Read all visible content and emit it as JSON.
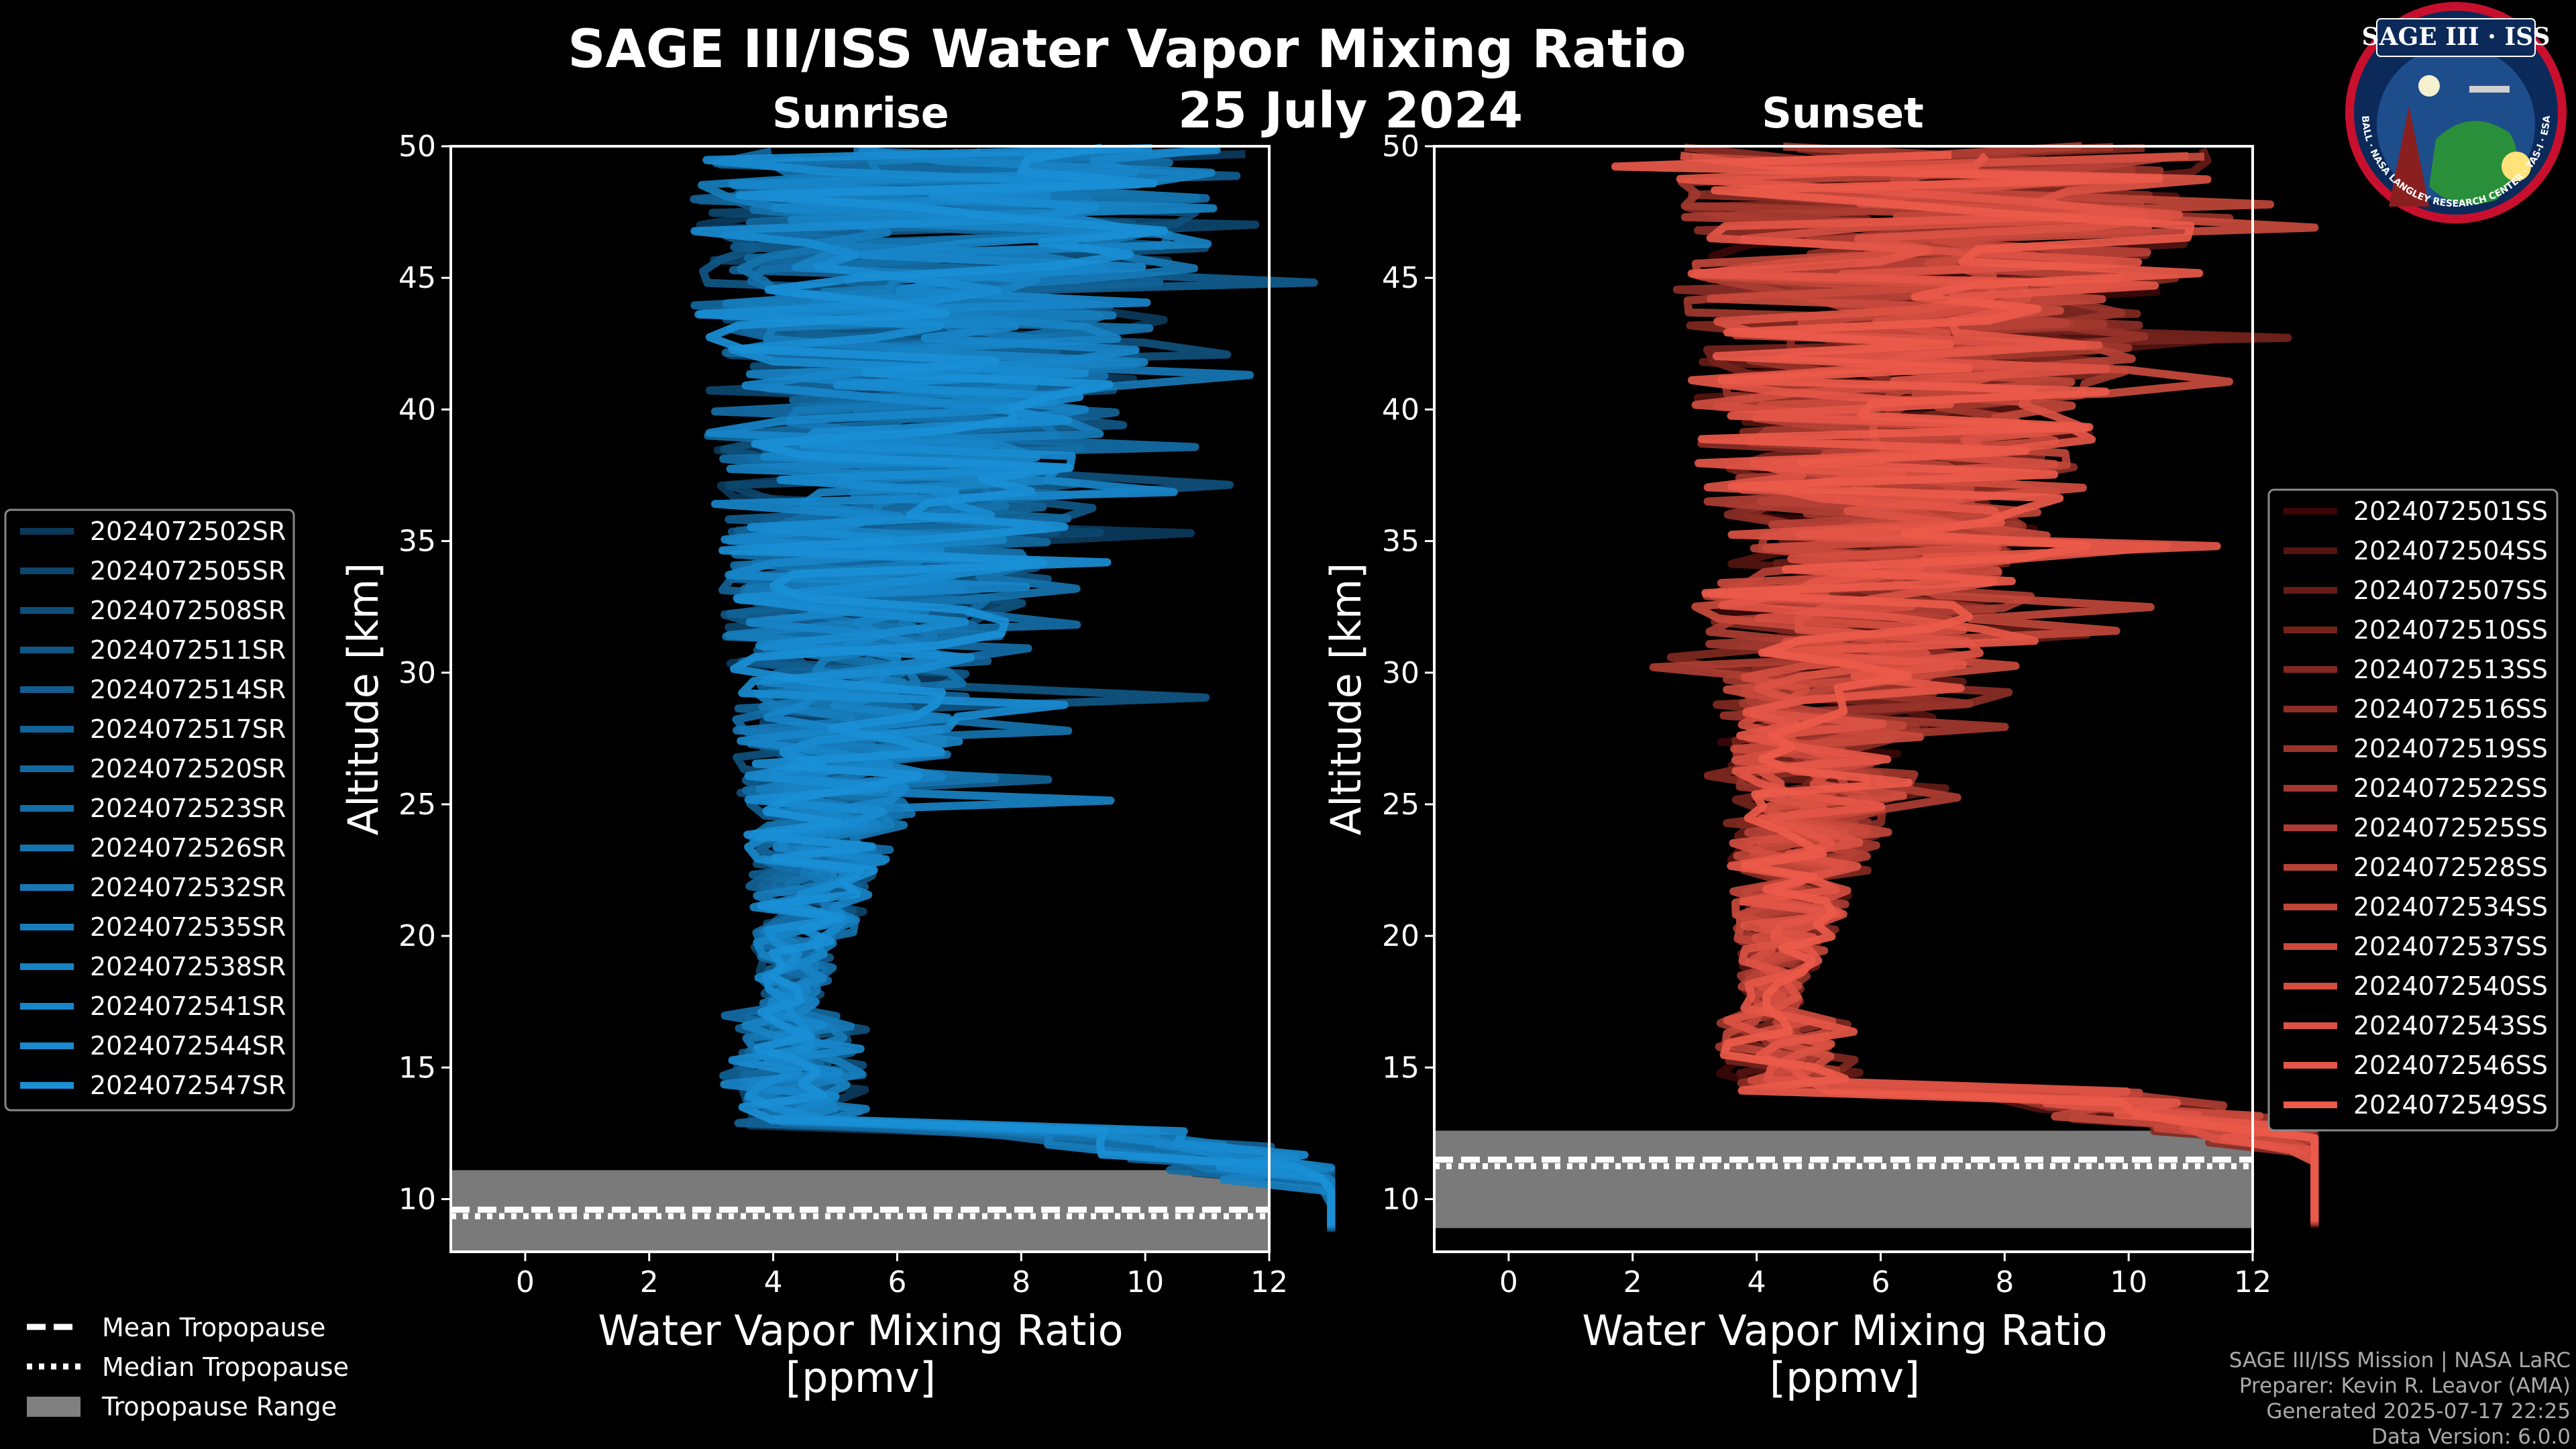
{
  "chart_data": {
    "title": "SAGE III/ISS Water Vapor Mixing Ratio",
    "date": "25 July 2024",
    "type": "line",
    "panels": [
      {
        "name": "sunrise",
        "subtitle": "Sunrise",
        "xlabel": "Water Vapor Mixing Ratio",
        "xunit": "[ppmv]",
        "ylabel": "Altitude [km]",
        "xlim": [
          -1.2,
          12
        ],
        "ylim": [
          8,
          50
        ],
        "xticks": [
          0,
          2,
          4,
          6,
          8,
          10,
          12
        ],
        "yticks": [
          10,
          15,
          20,
          25,
          30,
          35,
          40,
          45,
          50
        ],
        "tropopause": {
          "min": 8,
          "max": 11.1,
          "mean": 9.6,
          "median": 9.35
        },
        "color_dark": "#0b3a5c",
        "color_light": "#1a8fd6",
        "series": [
          "2024072502SR",
          "2024072505SR",
          "2024072508SR",
          "2024072511SR",
          "2024072514SR",
          "2024072517SR",
          "2024072520SR",
          "2024072523SR",
          "2024072526SR",
          "2024072532SR",
          "2024072535SR",
          "2024072538SR",
          "2024072541SR",
          "2024072544SR",
          "2024072547SR"
        ]
      },
      {
        "name": "sunset",
        "subtitle": "Sunset",
        "xlabel": "Water Vapor Mixing Ratio",
        "xunit": "[ppmv]",
        "ylabel": "Altitude [km]",
        "xlim": [
          -1.2,
          12
        ],
        "ylim": [
          8,
          50
        ],
        "xticks": [
          0,
          2,
          4,
          6,
          8,
          10,
          12
        ],
        "yticks": [
          10,
          15,
          20,
          25,
          30,
          35,
          40,
          45,
          50
        ],
        "tropopause": {
          "min": 8.9,
          "max": 12.6,
          "mean": 11.5,
          "median": 11.25
        },
        "color_dark": "#3a0806",
        "color_light": "#ec5a4a",
        "series": [
          "2024072501SS",
          "2024072504SS",
          "2024072507SS",
          "2024072510SS",
          "2024072513SS",
          "2024072516SS",
          "2024072519SS",
          "2024072522SS",
          "2024072525SS",
          "2024072528SS",
          "2024072534SS",
          "2024072537SS",
          "2024072540SS",
          "2024072543SS",
          "2024072546SS",
          "2024072549SS"
        ]
      }
    ],
    "tropopause_legend": [
      "Mean Tropopause",
      "Median Tropopause",
      "Tropopause Range"
    ]
  },
  "logo": {
    "text": "SAGE III · ISS",
    "ring_text": "BALL · NASA LANGLEY RESEARCH CENTER · TAS-I · ESA",
    "accent": "#c8102e",
    "navy": "#0b2a5a"
  },
  "credits": [
    "SAGE III/ISS Mission | NASA LaRC",
    "Preparer: Kevin R. Leavor (AMA)",
    "Generated 2025-07-17 22:25",
    "Data Version: 6.0.0"
  ]
}
